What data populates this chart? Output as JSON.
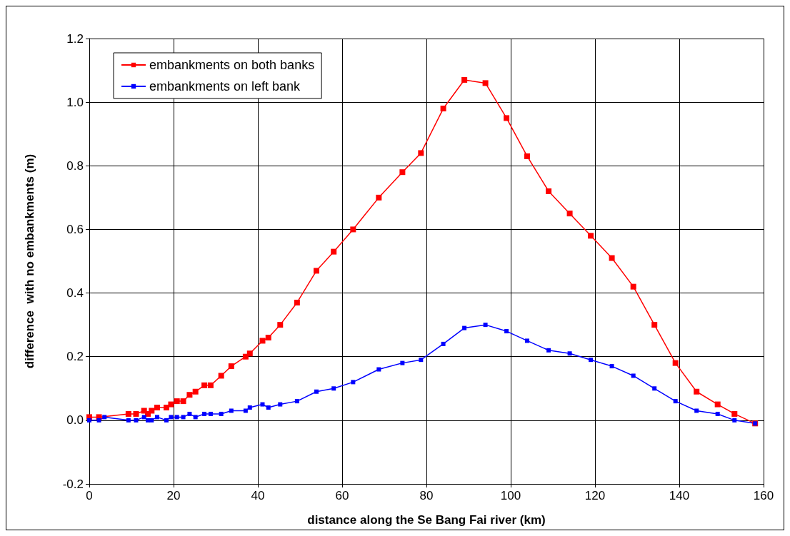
{
  "chart_data": {
    "type": "line",
    "xlabel": "distance along the Se Bang Fai river (km)",
    "ylabel": "difference  with no embankments (m)",
    "xlim": [
      0,
      160
    ],
    "xticks": [
      0,
      20,
      40,
      60,
      80,
      100,
      120,
      140,
      160
    ],
    "ylim": [
      -0.2,
      1.2
    ],
    "yticks": [
      {
        "value": -0.2,
        "label": "-0.2"
      },
      {
        "value": 0,
        "label": "0.0"
      },
      {
        "value": 0.2,
        "label": "0.2"
      },
      {
        "value": 0.4,
        "label": "0.4"
      },
      {
        "value": 0.6,
        "label": "0.6"
      },
      {
        "value": 0.8,
        "label": "0.8"
      },
      {
        "value": 1.0,
        "label": "1.0"
      },
      {
        "value": 1.2,
        "label": "1.2"
      }
    ],
    "grid": true,
    "legend": "top left",
    "marker": "square",
    "line_style": "solid",
    "series": [
      {
        "name": "embankments on both banks",
        "color": "#ff0000",
        "x": [
          0,
          2.3,
          9.3,
          11.1,
          13,
          13.9,
          14.8,
          16.1,
          18.3,
          19.4,
          20.8,
          22.3,
          23.8,
          25.2,
          27.3,
          28.8,
          31.3,
          33.7,
          37.1,
          38.1,
          41.1,
          42.5,
          45.3,
          49.3,
          53.9,
          58,
          62.6,
          68.7,
          74.3,
          78.7,
          84,
          89,
          94,
          99,
          103.9,
          109,
          114,
          119,
          124,
          129.1,
          134.1,
          139.1,
          144.1,
          149.1,
          153.1,
          158
        ],
        "values": [
          0.01,
          0.01,
          0.02,
          0.02,
          0.03,
          0.02,
          0.03,
          0.04,
          0.04,
          0.05,
          0.06,
          0.06,
          0.08,
          0.09,
          0.11,
          0.11,
          0.14,
          0.17,
          0.2,
          0.21,
          0.25,
          0.26,
          0.3,
          0.37,
          0.47,
          0.53,
          0.6,
          0.7,
          0.78,
          0.84,
          0.98,
          1.07,
          1.06,
          0.95,
          0.83,
          0.72,
          0.65,
          0.58,
          0.51,
          0.42,
          0.3,
          0.18,
          0.09,
          0.05,
          0.02,
          -0.01
        ]
      },
      {
        "name": "embankments on left bank",
        "color": "#0000ff",
        "x": [
          0,
          2.3,
          3.6,
          9.3,
          11.1,
          13,
          13.9,
          14.8,
          16.1,
          18.3,
          19.4,
          20.8,
          22.3,
          23.8,
          25.2,
          27.3,
          28.8,
          31.3,
          33.7,
          37.1,
          38.1,
          41.1,
          42.5,
          45.3,
          49.3,
          53.9,
          58,
          62.6,
          68.7,
          74.3,
          78.7,
          84,
          89,
          94,
          99,
          103.9,
          109,
          114,
          119,
          124,
          129.1,
          134.1,
          139.1,
          144.1,
          149.1,
          153.1,
          158
        ],
        "values": [
          0,
          0,
          0.01,
          0,
          0,
          0.01,
          0,
          0,
          0.01,
          0,
          0.01,
          0.01,
          0.01,
          0.02,
          0.01,
          0.02,
          0.02,
          0.02,
          0.03,
          0.03,
          0.04,
          0.05,
          0.04,
          0.05,
          0.06,
          0.09,
          0.1,
          0.12,
          0.16,
          0.18,
          0.19,
          0.24,
          0.29,
          0.3,
          0.28,
          0.25,
          0.22,
          0.21,
          0.19,
          0.17,
          0.14,
          0.1,
          0.06,
          0.03,
          0.02,
          0,
          -0.01
        ]
      }
    ]
  }
}
